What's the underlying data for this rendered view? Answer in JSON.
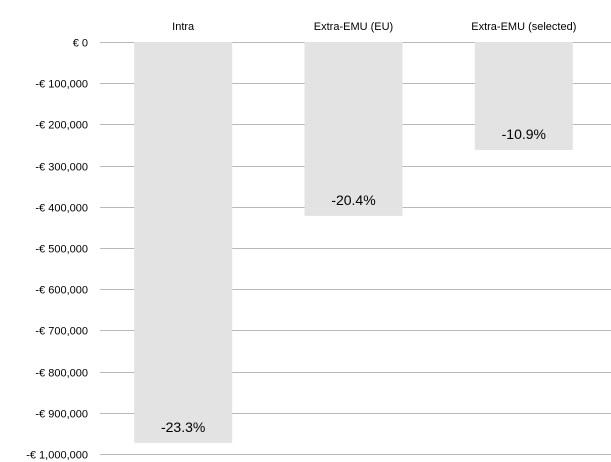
{
  "chart_data": {
    "type": "bar",
    "title": "",
    "xlabel": "",
    "ylabel": "",
    "categories": [
      "Intra",
      "Extra-EMU (EU)",
      "Extra-EMU (selected)"
    ],
    "values": [
      -973000,
      -422000,
      -262000
    ],
    "data_labels": [
      "-23.3%",
      "-20.4%",
      "-10.9%"
    ],
    "ylim": [
      -1000000,
      0
    ],
    "y_ticks": [
      0,
      -100000,
      -200000,
      -300000,
      -400000,
      -500000,
      -600000,
      -700000,
      -800000,
      -900000,
      -1000000
    ],
    "y_tick_labels": [
      "€ 0",
      "-€ 100,000",
      "-€ 200,000",
      "-€ 300,000",
      "-€ 400,000",
      "-€ 500,000",
      "-€ 600,000",
      "-€ 700,000",
      "-€ 800,000",
      "-€ 900,000",
      "-€ 1,000,000"
    ],
    "category_axis_position": "top",
    "grid": true,
    "legend": "none",
    "colors": {
      "bar": "#e3e3e3",
      "grid": "#b8b8b8",
      "text": "#000000"
    }
  }
}
